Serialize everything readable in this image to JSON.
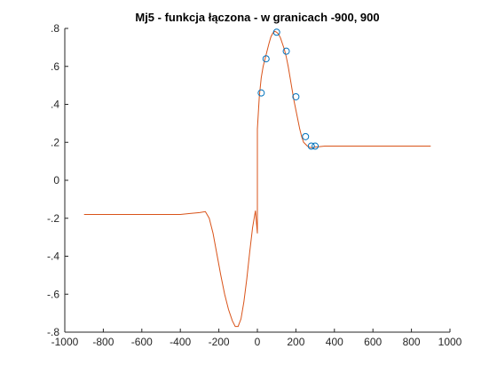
{
  "chart_data": {
    "type": "line",
    "title": "Mj5 - funkcja łączona - w granicach -900, 900",
    "xlabel": "",
    "ylabel": "",
    "xlim": [
      -1000,
      1000
    ],
    "ylim": [
      -0.8,
      0.8
    ],
    "xticks": [
      -1000,
      -800,
      -600,
      -400,
      -200,
      0,
      200,
      400,
      600,
      800,
      1000
    ],
    "yticks": [
      -0.8,
      -0.6,
      -0.4,
      -0.2,
      0,
      0.2,
      0.4,
      0.6,
      0.8
    ],
    "grid": false,
    "legend": "none",
    "series": [
      {
        "kind": "line",
        "color": "#d95319",
        "x": [
          -900,
          -800,
          -700,
          -600,
          -500,
          -400,
          -350,
          -300,
          -270,
          -250,
          -230,
          -210,
          -190,
          -170,
          -150,
          -130,
          -115,
          -100,
          -85,
          -70,
          -55,
          -40,
          -25,
          -10,
          0,
          0,
          10,
          20,
          30,
          40,
          50,
          60,
          70,
          80,
          90,
          100,
          110,
          120,
          130,
          140,
          150,
          160,
          170,
          180,
          190,
          200,
          210,
          220,
          230,
          240,
          250,
          260,
          270,
          280,
          290,
          300,
          350,
          400,
          500,
          600,
          700,
          800,
          900
        ],
        "y": [
          -0.18,
          -0.18,
          -0.18,
          -0.18,
          -0.18,
          -0.18,
          -0.175,
          -0.17,
          -0.165,
          -0.2,
          -0.28,
          -0.39,
          -0.5,
          -0.6,
          -0.68,
          -0.74,
          -0.77,
          -0.77,
          -0.73,
          -0.64,
          -0.52,
          -0.38,
          -0.25,
          -0.16,
          -0.28,
          0.27,
          0.44,
          0.54,
          0.6,
          0.64,
          0.68,
          0.72,
          0.755,
          0.775,
          0.785,
          0.78,
          0.77,
          0.75,
          0.72,
          0.69,
          0.65,
          0.6,
          0.54,
          0.48,
          0.42,
          0.37,
          0.32,
          0.27,
          0.23,
          0.2,
          0.19,
          0.18,
          0.175,
          0.172,
          0.172,
          0.175,
          0.18,
          0.18,
          0.18,
          0.18,
          0.18,
          0.18,
          0.18
        ]
      },
      {
        "kind": "scatter",
        "marker": "circle",
        "color": "#0072bd",
        "x": [
          20,
          45,
          100,
          150,
          200,
          250,
          280,
          300
        ],
        "y": [
          0.46,
          0.64,
          0.78,
          0.68,
          0.44,
          0.23,
          0.18,
          0.18
        ]
      }
    ]
  }
}
